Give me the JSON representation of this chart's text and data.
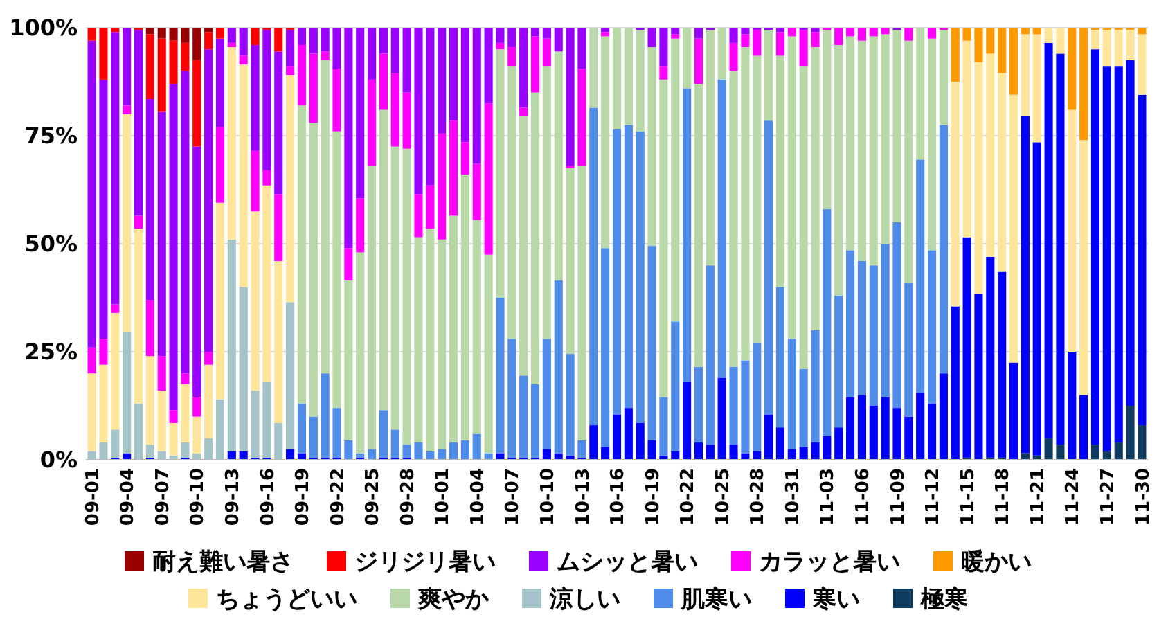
{
  "chart_data": {
    "type": "bar",
    "stacked": true,
    "grid": "y",
    "legend": "bottom",
    "categories": [
      "09-01",
      null,
      null,
      "09-04",
      null,
      null,
      "09-07",
      null,
      null,
      "09-10",
      null,
      null,
      "09-13",
      null,
      null,
      "09-16",
      null,
      null,
      "09-19",
      null,
      null,
      "09-22",
      null,
      null,
      "09-25",
      null,
      null,
      "09-28",
      null,
      null,
      "10-01",
      null,
      null,
      "10-04",
      null,
      null,
      "10-07",
      null,
      null,
      "10-10",
      null,
      null,
      "10-13",
      null,
      null,
      "10-16",
      null,
      null,
      "10-19",
      null,
      null,
      "10-22",
      null,
      null,
      "10-25",
      null,
      null,
      "10-28",
      null,
      null,
      "10-31",
      null,
      null,
      "11-03",
      null,
      null,
      "11-06",
      null,
      null,
      "11-09",
      null,
      null,
      "11-12",
      null,
      null,
      "11-15",
      null,
      null,
      "11-18",
      null,
      null,
      "11-21",
      null,
      null,
      "11-24",
      null,
      null,
      "11-27",
      null,
      null,
      "11-30"
    ],
    "ylim": [
      0,
      100
    ],
    "yticks": [
      {
        "value": 0,
        "label": "0%"
      },
      {
        "value": 25,
        "label": "25%"
      },
      {
        "value": 50,
        "label": "50%"
      },
      {
        "value": 75,
        "label": "75%"
      },
      {
        "value": 100,
        "label": "100%"
      }
    ],
    "series": [
      {
        "name": "極寒",
        "color": "#0e3b5f",
        "values": [
          0,
          0,
          0,
          0,
          0,
          0,
          0,
          0,
          0,
          0,
          0,
          0,
          0,
          0,
          0,
          0,
          0,
          0,
          0,
          0,
          0,
          0,
          0,
          0,
          0,
          0,
          0,
          0,
          0,
          0,
          0,
          0,
          0,
          0,
          0,
          0,
          0,
          0,
          0,
          0,
          0,
          0,
          0,
          0,
          0,
          0,
          0,
          0,
          0,
          0,
          0,
          0,
          0,
          0,
          0,
          0,
          0,
          0,
          0,
          0,
          0,
          0,
          0,
          0,
          0,
          0,
          0,
          0,
          0,
          0,
          0,
          0,
          0,
          0,
          0,
          0.5,
          0,
          0.5,
          0.5,
          0,
          1.5,
          1,
          5,
          3.5,
          0,
          0,
          3.5,
          2,
          4,
          12.5,
          8
        ]
      },
      {
        "name": "寒い",
        "color": "#0000ff",
        "values": [
          0,
          0,
          0.5,
          1.5,
          0,
          0.5,
          0,
          0,
          0.5,
          0,
          0,
          0,
          2,
          2,
          0.5,
          0.5,
          0,
          2.5,
          1.5,
          0.5,
          0.5,
          0.5,
          0,
          0.5,
          0,
          0.5,
          0.5,
          0.5,
          0,
          0,
          0,
          0,
          0,
          0,
          0,
          1.5,
          0.5,
          0.5,
          0.5,
          2.5,
          1.5,
          1,
          0.5,
          8,
          3,
          10.5,
          12,
          8.5,
          4.5,
          1,
          2,
          18,
          4,
          3.5,
          19,
          3.5,
          1.5,
          2,
          10.5,
          7.5,
          2.5,
          3,
          4,
          5.5,
          7.5,
          14.5,
          15,
          12.5,
          14.5,
          12,
          10,
          15.5,
          13,
          20,
          35.5,
          51,
          38.5,
          46.5,
          43,
          22.5,
          78,
          72.5,
          91.5,
          90.5,
          25,
          15,
          91.5,
          89,
          87,
          80,
          76.5
        ]
      },
      {
        "name": "肌寒い",
        "color": "#4f8be8",
        "values": [
          0,
          0,
          0,
          0,
          0,
          0,
          0,
          0,
          0,
          0,
          0,
          0,
          0,
          0,
          0,
          0,
          0,
          0,
          11.5,
          9.5,
          19.5,
          11.5,
          4.5,
          1,
          2.5,
          11,
          6.5,
          3,
          4,
          2,
          2.5,
          4,
          4.5,
          6,
          1.5,
          36,
          27.5,
          19,
          17,
          25.5,
          40,
          23.5,
          4,
          73.5,
          46,
          66,
          65.5,
          67.5,
          45,
          13.5,
          30,
          68,
          17.5,
          41.5,
          69,
          18,
          21.5,
          25,
          68,
          32.5,
          25.5,
          18,
          26,
          52.5,
          30.5,
          34,
          31,
          32.5,
          35.5,
          43,
          31,
          54,
          35.5,
          57.5,
          0,
          0,
          0,
          0,
          0,
          0,
          0,
          0,
          0,
          0,
          0,
          0,
          0,
          0,
          0,
          0,
          0
        ]
      },
      {
        "name": "涼しい",
        "color": "#a4c4c9",
        "values": [
          2,
          4,
          6.5,
          28,
          13,
          3,
          2,
          1,
          3.5,
          1.5,
          5,
          14,
          49,
          38,
          15.5,
          17.5,
          8.5,
          34,
          0,
          0,
          0,
          0,
          0,
          0,
          0,
          0,
          0,
          0,
          0,
          0,
          0,
          0,
          0,
          0,
          0,
          0,
          0,
          0,
          0,
          0,
          0,
          0,
          0,
          0,
          0,
          0,
          0,
          0,
          0,
          0,
          0,
          0,
          0,
          0,
          0,
          0,
          0,
          0,
          0,
          0,
          0,
          0,
          0,
          0,
          0,
          0,
          0,
          0,
          0,
          0,
          0,
          0,
          0,
          0,
          0,
          0,
          0,
          0,
          0,
          0,
          0,
          0,
          0,
          0,
          0,
          0,
          0,
          0,
          0,
          0,
          0
        ]
      },
      {
        "name": "爽やか",
        "color": "#b8d8a8",
        "values": [
          0,
          0,
          0,
          0,
          0,
          0,
          0,
          0,
          0,
          0,
          0,
          0,
          0,
          0,
          0,
          0,
          0,
          0,
          69,
          68,
          72.5,
          64,
          37,
          46.5,
          65.5,
          69.5,
          65.5,
          68.5,
          47.5,
          51.5,
          48.5,
          52.5,
          61.5,
          49.5,
          46,
          57.5,
          63,
          60,
          67.5,
          63,
          53,
          43,
          63.5,
          18.5,
          49,
          23.5,
          22.5,
          23.5,
          46,
          73.5,
          65.5,
          14,
          65.5,
          54.5,
          12,
          68.5,
          72.5,
          66.5,
          21,
          53.5,
          70,
          70,
          65.5,
          41.5,
          58,
          49.5,
          51,
          53,
          48.5,
          44.5,
          56,
          30.5,
          49,
          22,
          0,
          0,
          0,
          0,
          0,
          0,
          0,
          0,
          0,
          0,
          0,
          0,
          0,
          0,
          0,
          0,
          0
        ]
      },
      {
        "name": "ちょうどいい",
        "color": "#ffe599",
        "values": [
          18,
          18,
          27,
          50.5,
          40.5,
          20.5,
          14,
          7.5,
          13.5,
          8.5,
          17,
          45.5,
          44.5,
          51.5,
          41.5,
          45.5,
          37.5,
          52.5,
          0,
          0,
          0,
          0,
          0,
          0,
          0,
          0,
          0,
          0,
          0,
          0,
          0,
          0,
          0,
          0,
          0,
          0,
          0,
          0,
          0,
          0,
          0,
          0,
          0,
          0,
          0,
          0,
          0,
          0,
          0,
          0,
          0,
          0,
          0,
          0,
          0,
          0,
          0,
          0,
          0,
          0,
          0,
          0,
          0,
          0,
          0,
          0,
          0,
          0,
          0,
          0,
          0,
          0,
          0,
          0,
          52,
          45.5,
          53.5,
          47,
          46,
          62,
          19,
          25,
          3.5,
          6,
          56,
          59,
          4.5,
          8.5,
          8.5,
          7,
          14
        ]
      },
      {
        "name": "暖かい",
        "color": "#ff9900",
        "values": [
          0,
          0,
          0,
          0,
          0,
          0,
          0,
          0,
          0,
          0,
          0,
          0,
          0,
          0,
          0,
          0,
          0,
          0,
          0,
          0,
          0,
          0,
          0,
          0,
          0,
          0,
          0,
          0,
          0,
          0,
          0,
          0,
          0,
          0,
          0,
          0,
          0,
          0,
          0,
          0,
          0,
          0,
          0,
          0,
          0,
          0,
          0,
          0,
          0,
          0,
          0,
          0,
          0,
          0,
          0,
          0,
          0,
          0,
          0,
          0,
          0,
          0,
          0,
          0,
          0,
          0,
          0,
          0,
          0,
          0,
          0,
          0,
          0,
          0,
          12.5,
          3,
          8,
          6,
          10.5,
          15.5,
          1.5,
          1.5,
          0,
          0,
          19,
          26,
          0.5,
          0.5,
          0.5,
          0.5,
          1.5
        ]
      },
      {
        "name": "カラッと暑い",
        "color": "#ff00ff",
        "values": [
          6,
          6,
          2,
          2,
          3,
          13,
          8,
          3,
          2.5,
          4.5,
          3,
          17.5,
          1,
          2,
          14,
          3.5,
          15.5,
          2,
          14,
          16,
          2,
          14.5,
          7.5,
          12.5,
          20,
          13,
          17,
          13,
          10,
          10,
          24.5,
          22,
          7.5,
          13,
          35,
          1.5,
          4.5,
          2,
          13,
          6.5,
          0,
          0.5,
          22.5,
          0,
          1,
          0,
          0,
          0,
          0,
          3,
          1,
          0,
          10.5,
          0,
          0,
          6.5,
          3,
          6,
          0,
          5.5,
          2,
          8.5,
          3.5,
          0.5,
          4,
          2,
          3,
          2,
          1.5,
          0,
          3,
          0,
          2.5,
          0.5,
          0,
          0,
          0,
          0,
          0,
          0,
          0,
          0,
          0,
          0,
          0,
          0,
          0,
          0,
          0,
          0,
          0
        ]
      },
      {
        "name": "ムシッと暑い",
        "color": "#9900ff",
        "values": [
          71,
          60,
          63,
          18,
          43,
          46.5,
          56.5,
          75.5,
          70,
          58,
          70,
          20.5,
          3.5,
          6.5,
          24.5,
          32.5,
          33,
          8.5,
          4,
          6,
          5.5,
          9.5,
          51,
          39.5,
          12,
          6,
          10.5,
          15,
          38.5,
          36.5,
          24.5,
          21.5,
          26.5,
          31.5,
          17.5,
          3.5,
          4.5,
          18.5,
          2,
          2.5,
          5.5,
          32,
          9.5,
          0,
          1,
          0,
          0,
          0.5,
          4.5,
          9,
          1.5,
          0,
          2.5,
          0.5,
          0,
          3.5,
          1.5,
          0.5,
          0.5,
          1,
          0,
          0.5,
          1,
          0,
          0,
          0,
          0,
          0,
          0,
          0.5,
          0,
          0,
          0,
          0,
          0,
          0,
          0,
          0,
          0,
          0,
          0,
          0,
          0,
          0,
          0,
          0,
          0,
          0,
          0,
          0,
          0
        ]
      },
      {
        "name": "ジリジリ暑い",
        "color": "#ff0000",
        "values": [
          3,
          12,
          1,
          0,
          0.5,
          15,
          17,
          10,
          6.5,
          20,
          4,
          2.5,
          0,
          0,
          4,
          0.5,
          5.5,
          0.5,
          0,
          0,
          0,
          0,
          0,
          0,
          0,
          0,
          0,
          0,
          0,
          0,
          0,
          0,
          0,
          0,
          0,
          0,
          0,
          0,
          0,
          0,
          0,
          0,
          0,
          0,
          0,
          0,
          0,
          0,
          0,
          0,
          0,
          0,
          0,
          0,
          0,
          0,
          0,
          0,
          0,
          0,
          0,
          0,
          0,
          0,
          0,
          0,
          0,
          0,
          0,
          0,
          0,
          0,
          0,
          0,
          0,
          0,
          0,
          0,
          0,
          0,
          0,
          0,
          0,
          0,
          0,
          0,
          0,
          0,
          0,
          0,
          0
        ]
      },
      {
        "name": "耐え難い暑さ",
        "color": "#990000",
        "values": [
          0,
          0,
          0,
          0,
          0,
          1.5,
          2.5,
          3,
          3.5,
          7.5,
          1,
          0,
          0,
          0,
          0,
          0,
          0,
          0,
          0,
          0,
          0,
          0,
          0,
          0,
          0,
          0,
          0,
          0,
          0,
          0,
          0,
          0,
          0,
          0,
          0,
          0,
          0,
          0,
          0,
          0,
          0,
          0,
          0,
          0,
          0,
          0,
          0,
          0,
          0,
          0,
          0,
          0,
          0,
          0,
          0,
          0,
          0,
          0,
          0,
          0,
          0,
          0,
          0,
          0,
          0,
          0,
          0,
          0,
          0,
          0,
          0,
          0,
          0,
          0,
          0,
          0,
          0,
          0,
          0,
          0,
          0,
          0,
          0,
          0,
          0,
          0,
          0,
          0,
          0,
          0,
          0
        ]
      }
    ]
  }
}
